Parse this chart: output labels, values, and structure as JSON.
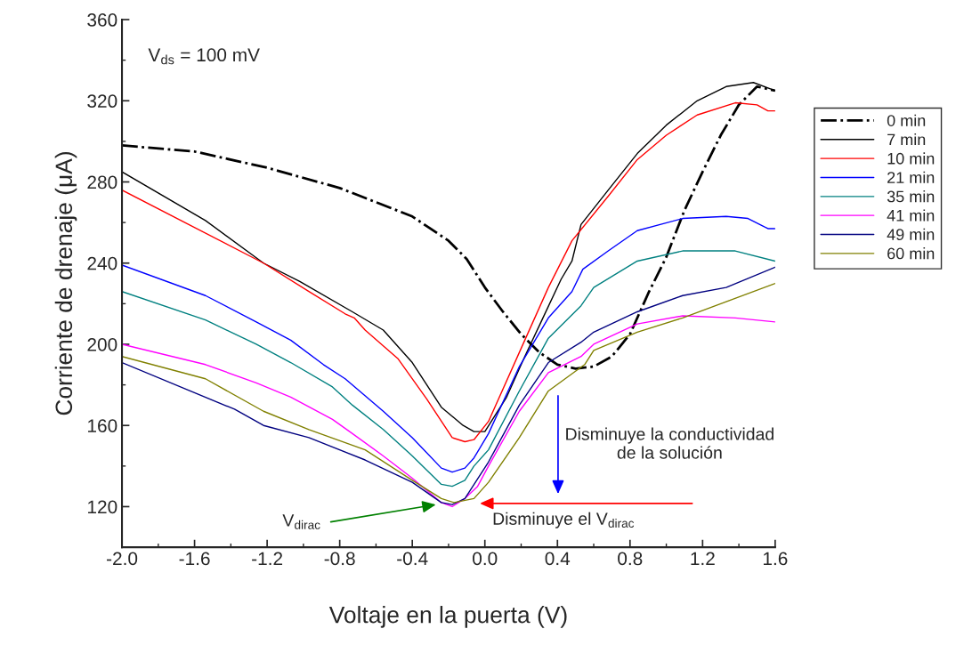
{
  "chart_data": {
    "type": "line",
    "xlabel": "Voltaje en la puerta (V)",
    "ylabel": "Corriente de drenaje (μA)",
    "xlim": [
      -2.0,
      1.6
    ],
    "ylim": [
      100,
      360
    ],
    "xticks": [
      {
        "value": -2.0,
        "label": "-2.0"
      },
      -1.6,
      -1.2,
      -0.8,
      -0.4,
      {
        "value": 0.0,
        "label": "0.0"
      },
      0.4,
      0.8,
      1.2,
      1.6
    ],
    "yticks": [
      120,
      160,
      200,
      240,
      280,
      320,
      360
    ],
    "grid": false,
    "legend": "right",
    "series": [
      {
        "name": "0 min",
        "color": "#000000",
        "line_style": "dashdot",
        "x": [
          -2.0,
          -1.6,
          -1.2,
          -0.8,
          -0.4,
          -0.2,
          -0.1,
          0,
          0.1,
          0.2,
          0.3,
          0.4,
          0.5,
          0.6,
          0.7,
          0.8,
          0.9,
          1.0,
          1.1,
          1.2,
          1.3,
          1.4,
          1.5,
          1.6
        ],
        "values": [
          298,
          295,
          287,
          277,
          263,
          251,
          242,
          228,
          216,
          205,
          196,
          190,
          188,
          189,
          194,
          205,
          225,
          243,
          266,
          285,
          303,
          318,
          327,
          325
        ]
      },
      {
        "name": "7 min",
        "color": "#000000",
        "x": [
          -2.0,
          -1.54,
          -1.22,
          -1.02,
          -0.73,
          -0.56,
          -0.4,
          -0.24,
          -0.12,
          -0.06,
          0,
          0.12,
          0.22,
          0.32,
          0.42,
          0.48,
          0.53,
          0.68,
          0.84,
          1.0,
          1.17,
          1.33,
          1.48,
          1.6
        ],
        "values": [
          285,
          261,
          240,
          231,
          216,
          207,
          191,
          169,
          160,
          157,
          157,
          174,
          194,
          213,
          232,
          241,
          259,
          276,
          294,
          308,
          320,
          327,
          329,
          325
        ]
      },
      {
        "name": "10 min",
        "color": "#ff0000",
        "x": [
          -2.0,
          -1.22,
          -0.97,
          -0.77,
          -0.72,
          -0.66,
          -0.48,
          -0.32,
          -0.18,
          -0.11,
          -0.06,
          0.02,
          0.19,
          0.35,
          0.48,
          0.68,
          0.84,
          1.0,
          1.17,
          1.38,
          1.5,
          1.56,
          1.6
        ],
        "values": [
          276,
          240,
          226,
          215,
          213,
          207,
          193,
          173,
          154,
          152,
          153,
          162,
          196,
          228,
          251,
          273,
          291,
          303,
          313,
          319,
          318,
          315,
          315
        ]
      },
      {
        "name": "21 min",
        "color": "#0000ff",
        "x": [
          -2.0,
          -1.54,
          -1.26,
          -1.07,
          -0.89,
          -0.77,
          -0.56,
          -0.4,
          -0.24,
          -0.18,
          -0.11,
          -0.06,
          0.02,
          0.19,
          0.35,
          0.48,
          0.54,
          0.68,
          0.84,
          1.09,
          1.33,
          1.45,
          1.56,
          1.6
        ],
        "values": [
          239,
          224,
          211,
          202,
          190,
          183,
          167,
          154,
          139,
          137,
          139,
          144,
          156,
          189,
          213,
          226,
          237,
          246,
          256,
          262,
          263,
          262,
          257,
          257
        ]
      },
      {
        "name": "35 min",
        "color": "#008080",
        "x": [
          -2.0,
          -1.54,
          -1.26,
          -1.07,
          -0.84,
          -0.73,
          -0.56,
          -0.4,
          -0.24,
          -0.18,
          -0.11,
          -0.06,
          0.02,
          0.19,
          0.35,
          0.53,
          0.6,
          0.84,
          1.09,
          1.38,
          1.6
        ],
        "values": [
          226,
          212,
          200,
          191,
          179,
          170,
          158,
          145,
          131,
          130,
          133,
          140,
          148,
          177,
          203,
          219,
          228,
          241,
          246,
          246,
          241
        ]
      },
      {
        "name": "41 min",
        "color": "#ff00ff",
        "x": [
          -2.0,
          -1.54,
          -1.26,
          -1.07,
          -0.84,
          -0.73,
          -0.56,
          -0.4,
          -0.24,
          -0.18,
          -0.11,
          -0.04,
          0.02,
          0.19,
          0.35,
          0.53,
          0.6,
          0.84,
          1.09,
          1.38,
          1.6
        ],
        "values": [
          200,
          190,
          181,
          174,
          163,
          156,
          145,
          134,
          122,
          120,
          124,
          130,
          140,
          167,
          186,
          194,
          200,
          210,
          214,
          213,
          211
        ]
      },
      {
        "name": "49 min",
        "color": "#000080",
        "x": [
          -2.0,
          -1.38,
          -1.22,
          -0.97,
          -0.66,
          -0.4,
          -0.24,
          -0.18,
          -0.11,
          0.02,
          0.19,
          0.35,
          0.53,
          0.6,
          0.84,
          1.09,
          1.33,
          1.6
        ],
        "values": [
          191,
          168,
          160,
          154,
          143,
          132,
          122,
          121,
          124,
          142,
          170,
          191,
          201,
          206,
          216,
          224,
          228,
          238
        ]
      },
      {
        "name": "60 min",
        "color": "#808000",
        "x": [
          -2.0,
          -1.54,
          -1.22,
          -0.97,
          -0.66,
          -0.4,
          -0.24,
          -0.17,
          -0.06,
          0.02,
          0.19,
          0.35,
          0.55,
          0.6,
          0.84,
          1.09,
          1.33,
          1.6
        ],
        "values": [
          194,
          183,
          167,
          158,
          148,
          133,
          124,
          122,
          124,
          132,
          154,
          177,
          190,
          197,
          206,
          213,
          221,
          230
        ]
      }
    ],
    "annotations": [
      "V$_{ds}$ = 100 mV",
      {
        "text": "V$_{dirac}$",
        "x": -0.27,
        "y": 121
      },
      "Disminuye la conductividad\nde la solución",
      "Disminuye el V$_{dirac}$"
    ]
  }
}
